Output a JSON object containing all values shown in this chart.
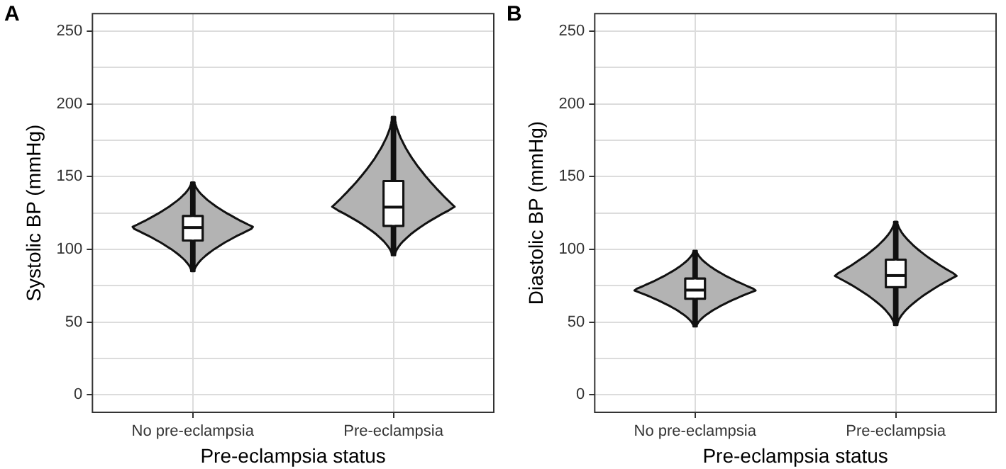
{
  "chart_data": [
    {
      "type": "box",
      "annotations": [
        "A"
      ],
      "xlabel": "Pre-eclampsia status",
      "ylabel": "Systolic BP (mmHg)",
      "categories": [
        "No pre-eclampsia",
        "Pre-eclampsia"
      ],
      "color": "#ffffff",
      "boxes": [
        {
          "low": 85,
          "q1": 106,
          "median": 115,
          "q3": 123,
          "high": 146
        },
        {
          "low": 96,
          "q1": 116,
          "median": 129,
          "q3": 147,
          "high": 191
        }
      ],
      "ylim": [
        -12,
        262
      ],
      "yticks": [
        0,
        {
          "value": 25,
          "label": null
        },
        50,
        {
          "value": 75,
          "label": null
        },
        100,
        {
          "value": 125,
          "label": null
        },
        150,
        {
          "value": 175,
          "label": null
        },
        200,
        {
          "value": 225,
          "label": null
        },
        250
      ],
      "grid": true
    },
    {
      "type": "box",
      "annotations": [
        "B"
      ],
      "xlabel": "Pre-eclampsia status",
      "ylabel": "Diastolic BP (mmHg)",
      "categories": [
        "No pre-eclampsia",
        "Pre-eclampsia"
      ],
      "color": "#ffffff",
      "boxes": [
        {
          "low": 47,
          "q1": 66,
          "median": 72,
          "q3": 80,
          "high": 99
        },
        {
          "low": 48,
          "q1": 74,
          "median": 82,
          "q3": 93,
          "high": 119
        }
      ],
      "ylim": [
        -12,
        262
      ],
      "yticks": [
        0,
        {
          "value": 25,
          "label": null
        },
        50,
        {
          "value": 75,
          "label": null
        },
        100,
        {
          "value": 125,
          "label": null
        },
        150,
        {
          "value": 175,
          "label": null
        },
        200,
        {
          "value": 225,
          "label": null
        },
        250
      ],
      "grid": true
    }
  ]
}
